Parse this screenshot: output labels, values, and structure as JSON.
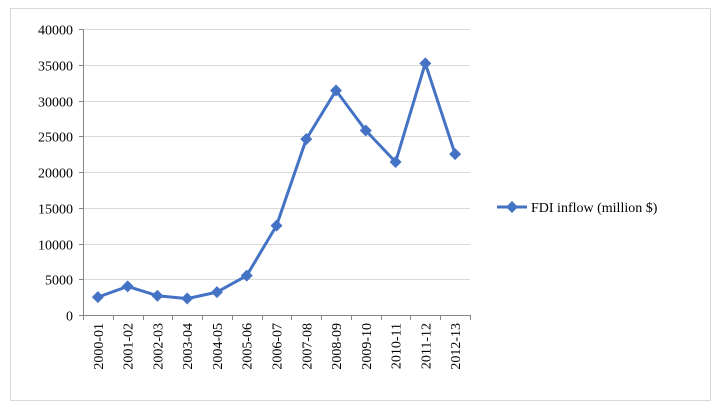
{
  "chart_data": {
    "type": "line",
    "title": "",
    "xlabel": "",
    "ylabel": "",
    "categories": [
      "2000-01",
      "2001-02",
      "2002-03",
      "2003-04",
      "2004-05",
      "2005-06",
      "2006-07",
      "2007-08",
      "2008-09",
      "2009-10",
      "2010-11",
      "2011-12",
      "2012-13"
    ],
    "series": [
      {
        "name": "FDI inflow (million $)",
        "values": [
          2500,
          4000,
          2700,
          2300,
          3200,
          5500,
          12500,
          24600,
          31400,
          25800,
          21400,
          35200,
          22500
        ],
        "color": "#4472c4",
        "marker": "diamond"
      }
    ],
    "ylim": [
      0,
      40000
    ],
    "yticks": [
      0,
      5000,
      10000,
      15000,
      20000,
      25000,
      30000,
      35000,
      40000
    ],
    "grid": "horizontal",
    "legend_position": "right"
  }
}
